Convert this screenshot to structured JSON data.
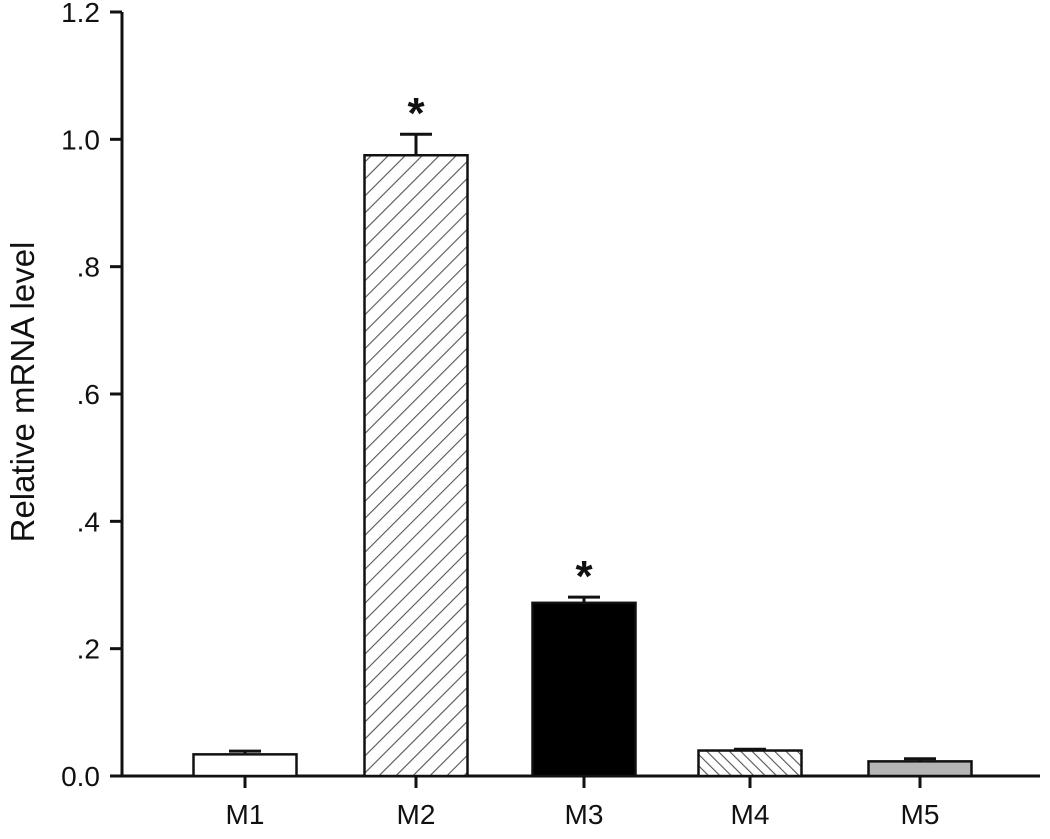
{
  "chart_data": {
    "type": "bar",
    "categories": [
      "M1",
      "M2",
      "M3",
      "M4",
      "M5"
    ],
    "values": [
      0.034,
      0.975,
      0.272,
      0.04,
      0.023
    ],
    "errors": [
      0.005,
      0.033,
      0.009,
      0.002,
      0.004
    ],
    "annotations": [
      "",
      "*",
      "*",
      "",
      ""
    ],
    "bar_styles": [
      "white",
      "hatch-forward",
      "black",
      "hatch-back",
      "gray"
    ],
    "bar_colors": {
      "white": "#ffffff",
      "black": "#000000",
      "gray": "#b4b4b4",
      "hatch_line": "#555555"
    },
    "title": "",
    "xlabel": "",
    "ylabel": "Relative mRNA level",
    "ylim": [
      0,
      1.2
    ],
    "yticks": [
      {
        "value": 0,
        "label": "0.0"
      },
      {
        "value": 0.2,
        "label": ".2"
      },
      {
        "value": 0.4,
        "label": ".4"
      },
      {
        "value": 0.6,
        "label": ".6"
      },
      {
        "value": 0.8,
        "label": ".8"
      },
      {
        "value": 1.0,
        "label": "1.0"
      },
      {
        "value": 1.2,
        "label": "1.2"
      }
    ],
    "grid": false,
    "legend": "none"
  }
}
